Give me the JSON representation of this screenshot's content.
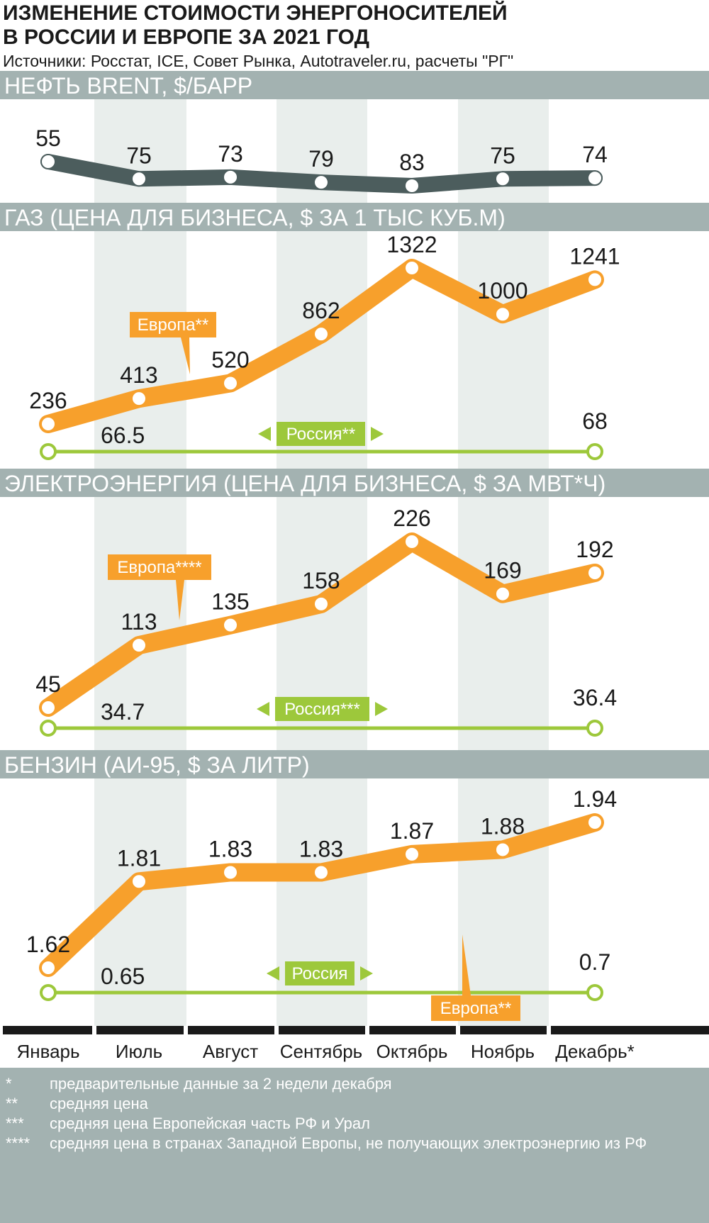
{
  "header": {
    "title_line1": "ИЗМЕНЕНИЕ СТОИМОСТИ ЭНЕРГОНОСИТЕЛЕЙ",
    "title_line2": "В РОССИИ И ЕВРОПЕ ЗА 2021 ГОД",
    "sources": "Источники: Росстат, ICE, Совет Рынка, Autotraveler.ru, расчеты \"РГ\""
  },
  "colors": {
    "band": "#a3b2b1",
    "stripe": "#e9eeec",
    "oil": "#4c5d5d",
    "europe": "#f7a02c",
    "russia": "#9dc83b",
    "axis": "#1a1a1a",
    "footnote_bg": "#a3b2b1"
  },
  "chart_data": [
    {
      "type": "line",
      "title": "НЕФТЬ BRENT, $/БАРР",
      "categories": [
        "Январь",
        "Июль",
        "Август",
        "Сентябрь",
        "Октябрь",
        "Ноябрь",
        "Декабрь*"
      ],
      "series": [
        {
          "values": [
            55,
            75,
            73,
            79,
            83,
            75,
            74
          ],
          "labels": [
            "55",
            "75",
            "73",
            "79",
            "83",
            "75",
            "74"
          ]
        }
      ]
    },
    {
      "type": "line",
      "title": "ГАЗ (ЦЕНА ДЛЯ БИЗНЕСА, $ ЗА 1 ТЫС КУБ.М)",
      "categories": [
        "Январь",
        "Июль",
        "Август",
        "Сентябрь",
        "Октябрь",
        "Ноябрь",
        "Декабрь*"
      ],
      "series": [
        {
          "name": "Европа**",
          "values": [
            236,
            413,
            520,
            862,
            1322,
            1000,
            1241
          ],
          "labels": [
            "236",
            "413",
            "520",
            "862",
            "1322",
            "1000",
            "1241"
          ]
        },
        {
          "name": "Россия**",
          "values": [
            66.5,
            68
          ],
          "x": [
            "Январь",
            "Декабрь*"
          ],
          "labels": [
            "66.5",
            "68"
          ]
        }
      ]
    },
    {
      "type": "line",
      "title": "ЭЛЕКТРОЭНЕРГИЯ (ЦЕНА ДЛЯ БИЗНЕСА, $ ЗА МВТ*Ч)",
      "categories": [
        "Январь",
        "Июль",
        "Август",
        "Сентябрь",
        "Октябрь",
        "Ноябрь",
        "Декабрь*"
      ],
      "series": [
        {
          "name": "Европа****",
          "values": [
            45,
            113,
            135,
            158,
            226,
            169,
            192
          ],
          "labels": [
            "45",
            "113",
            "135",
            "158",
            "226",
            "169",
            "192"
          ]
        },
        {
          "name": "Россия***",
          "values": [
            34.7,
            36.4
          ],
          "x": [
            "Январь",
            "Декабрь*"
          ],
          "labels": [
            "34.7",
            "36.4"
          ]
        }
      ]
    },
    {
      "type": "line",
      "title": "БЕНЗИН (АИ-95, $ ЗА ЛИТР)",
      "categories": [
        "Январь",
        "Июль",
        "Август",
        "Сентябрь",
        "Октябрь",
        "Ноябрь",
        "Декабрь*"
      ],
      "series": [
        {
          "name": "Европа**",
          "values": [
            1.62,
            1.81,
            1.83,
            1.83,
            1.87,
            1.88,
            1.94
          ],
          "labels": [
            "1.62",
            "1.81",
            "1.83",
            "1.83",
            "1.87",
            "1.88",
            "1.94"
          ]
        },
        {
          "name": "Россия",
          "values": [
            0.65,
            0.7
          ],
          "x": [
            "Январь",
            "Декабрь*"
          ],
          "labels": [
            "0.65",
            "0.7"
          ]
        }
      ]
    }
  ],
  "x_axis_labels": [
    "Январь",
    "Июль",
    "Август",
    "Сентябрь",
    "Октябрь",
    "Ноябрь",
    "Декабрь*"
  ],
  "footnotes": [
    {
      "mark": "*",
      "text": "предварительные данные за 2 недели декабря"
    },
    {
      "mark": "**",
      "text": "средняя цена"
    },
    {
      "mark": "***",
      "text": "средняя цена Европейская часть РФ и Урал"
    },
    {
      "mark": "****",
      "text": "средняя цена в странах Западной Европы, не получающих электроэнергию из РФ"
    }
  ]
}
